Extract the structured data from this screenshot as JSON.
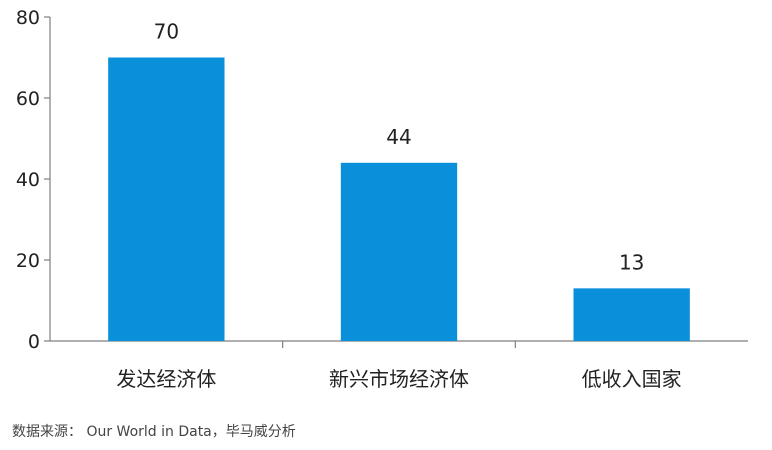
{
  "chart_data": {
    "type": "bar",
    "categories": [
      "发达经济体",
      "新兴市场经济体",
      "低收入国家"
    ],
    "values": [
      70,
      44,
      13
    ],
    "data_labels": [
      "70",
      "44",
      "13"
    ],
    "ylim": [
      0,
      80
    ],
    "yticks": [
      0,
      20,
      40,
      60,
      80
    ],
    "ytick_labels": [
      "0",
      "20",
      "40",
      "60",
      "80"
    ],
    "title": "",
    "xlabel": "",
    "ylabel": "",
    "grid": false,
    "bar_color": "#0a8fdb"
  },
  "source_text": "数据来源： Our World in Data，毕马威分析"
}
